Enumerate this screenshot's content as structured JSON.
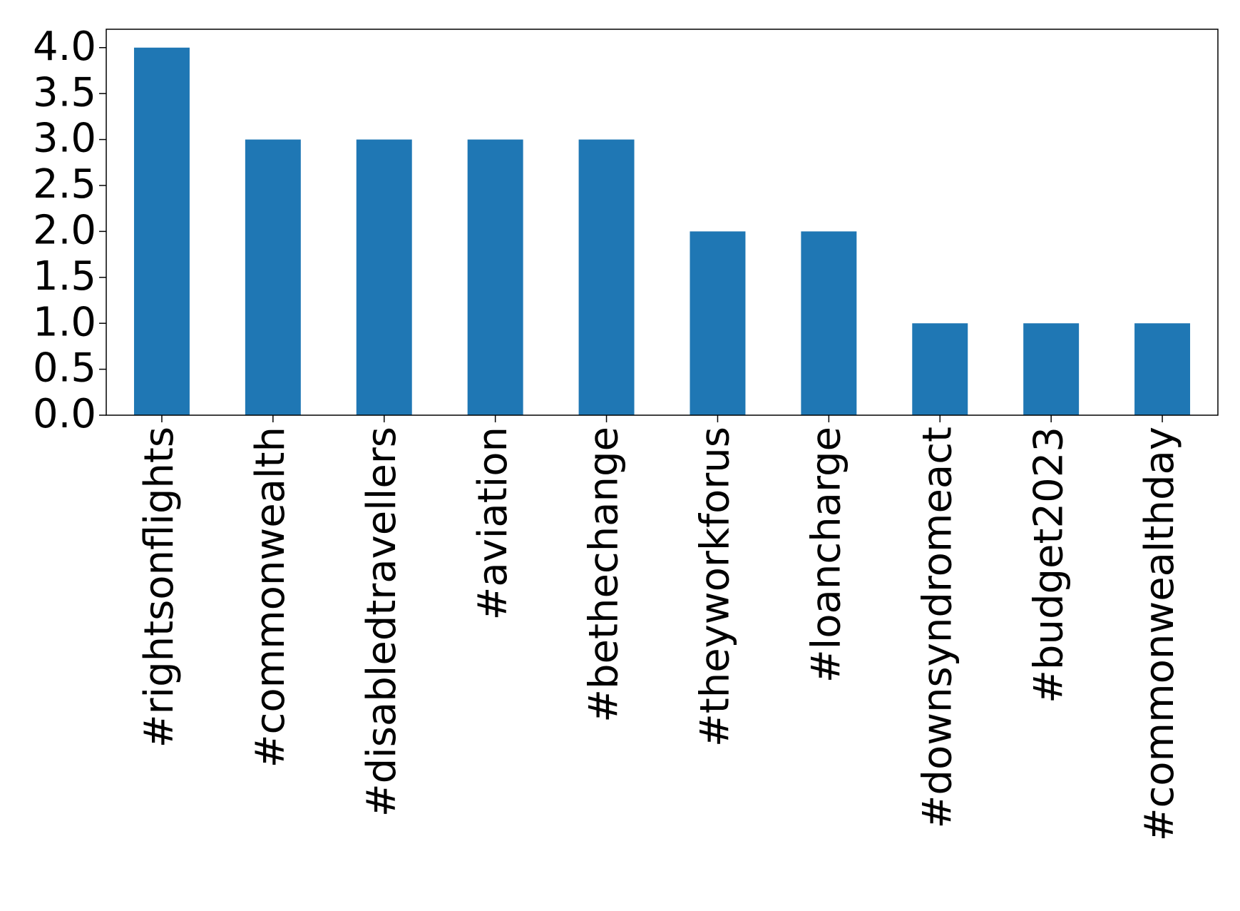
{
  "chart_data": {
    "type": "bar",
    "categories": [
      "#rightsonflights",
      "#commonwealth",
      "#disabledtravellers",
      "#aviation",
      "#bethechange",
      "#theyworkforus",
      "#loancharge",
      "#downsyndromeact",
      "#budget2023",
      "#commonwealthday"
    ],
    "values": [
      4,
      3,
      3,
      3,
      3,
      2,
      2,
      1,
      1,
      1
    ],
    "color": "#1f77b4",
    "ylim": [
      0,
      4.2
    ],
    "yticks": [
      {
        "value": 0,
        "label": "0.0"
      },
      {
        "value": 0.5,
        "label": "0.5"
      },
      {
        "value": 1,
        "label": "1.0"
      },
      {
        "value": 1.5,
        "label": "1.5"
      },
      {
        "value": 2,
        "label": "2.0"
      },
      {
        "value": 2.5,
        "label": "2.5"
      },
      {
        "value": 3,
        "label": "3.0"
      },
      {
        "value": 3.5,
        "label": "3.5"
      },
      {
        "value": 4,
        "label": "4.0"
      }
    ],
    "grid": false
  }
}
